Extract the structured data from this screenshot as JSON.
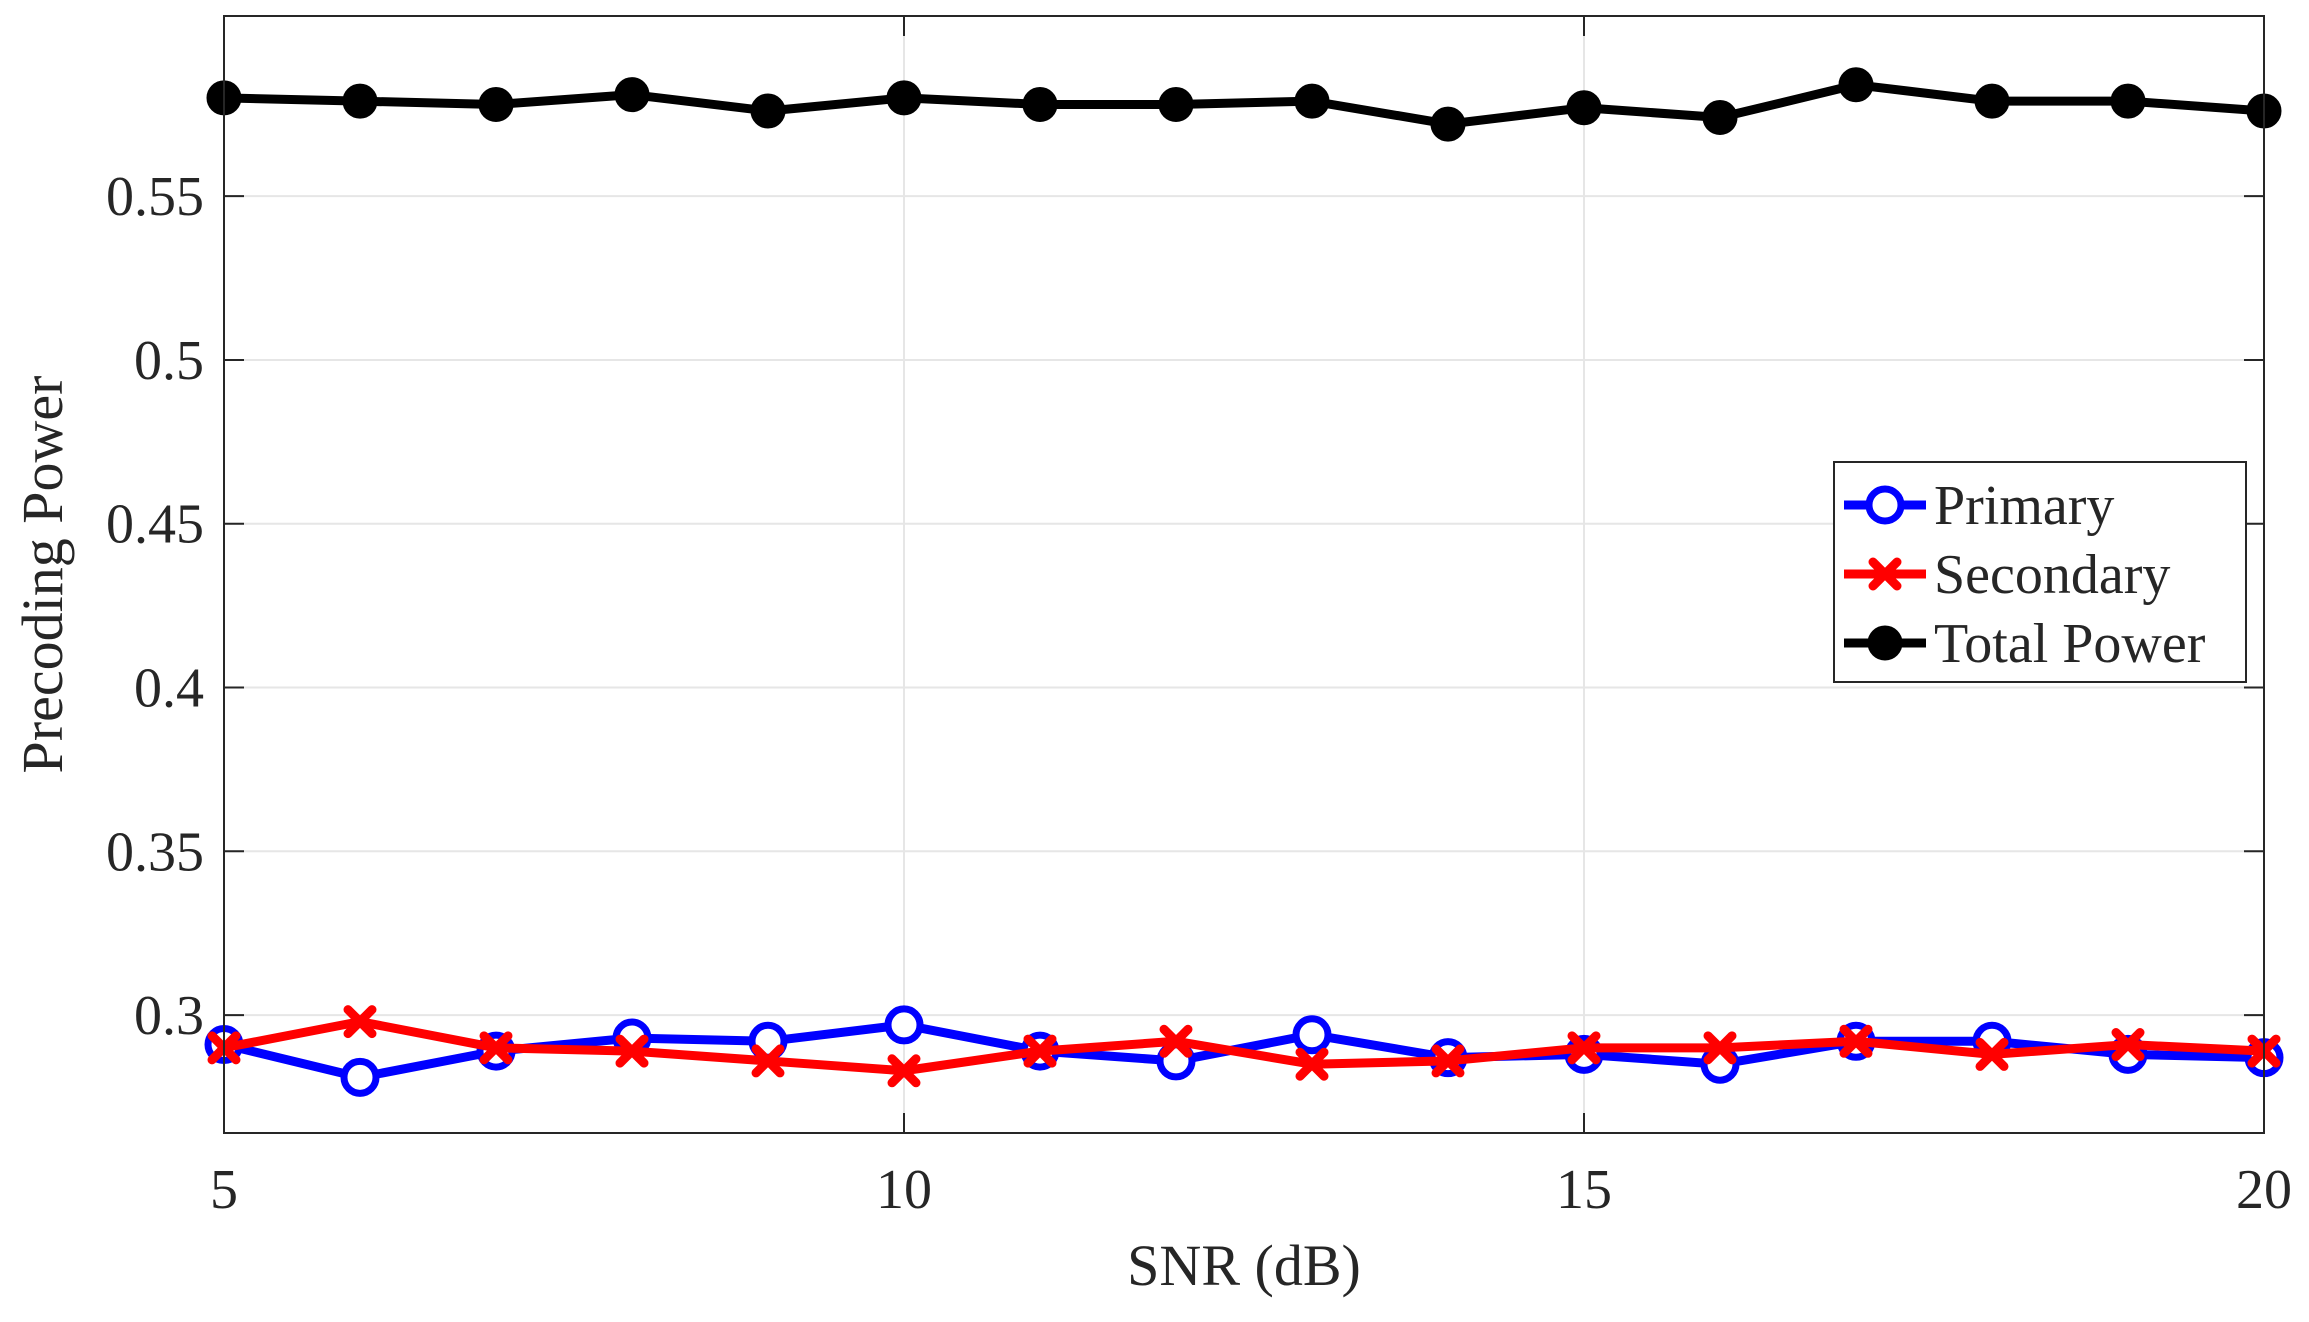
{
  "chart_data": {
    "type": "line",
    "xlabel": "SNR (dB)",
    "ylabel": "Precoding Power",
    "xlim": [
      5,
      20
    ],
    "ylim": [
      0.264,
      0.605
    ],
    "xticks": [
      5,
      10,
      15,
      20
    ],
    "xtick_labels": [
      "5",
      "10",
      "15",
      "20"
    ],
    "yticks": [
      0.3,
      0.35,
      0.4,
      0.45,
      0.5,
      0.55
    ],
    "ytick_labels": [
      "0.3",
      "0.35",
      "0.4",
      "0.45",
      "0.5",
      "0.55"
    ],
    "grid": true,
    "legend_position": "right",
    "x": [
      5,
      6,
      7,
      8,
      9,
      10,
      11,
      12,
      13,
      14,
      15,
      16,
      17,
      18,
      19,
      20
    ],
    "series": [
      {
        "name": "Primary",
        "color": "#0000ff",
        "marker": "circle-open",
        "values": [
          0.291,
          0.281,
          0.289,
          0.293,
          0.292,
          0.297,
          0.289,
          0.286,
          0.294,
          0.287,
          0.288,
          0.285,
          0.292,
          0.292,
          0.288,
          0.287
        ]
      },
      {
        "name": "Secondary",
        "color": "#ff0000",
        "marker": "x",
        "values": [
          0.29,
          0.298,
          0.29,
          0.289,
          0.286,
          0.283,
          0.289,
          0.292,
          0.285,
          0.286,
          0.29,
          0.29,
          0.292,
          0.288,
          0.291,
          0.289
        ]
      },
      {
        "name": "Total Power",
        "color": "#000000",
        "marker": "circle-filled",
        "values": [
          0.58,
          0.579,
          0.578,
          0.581,
          0.576,
          0.58,
          0.578,
          0.578,
          0.579,
          0.572,
          0.577,
          0.574,
          0.584,
          0.579,
          0.579,
          0.576
        ]
      }
    ]
  }
}
